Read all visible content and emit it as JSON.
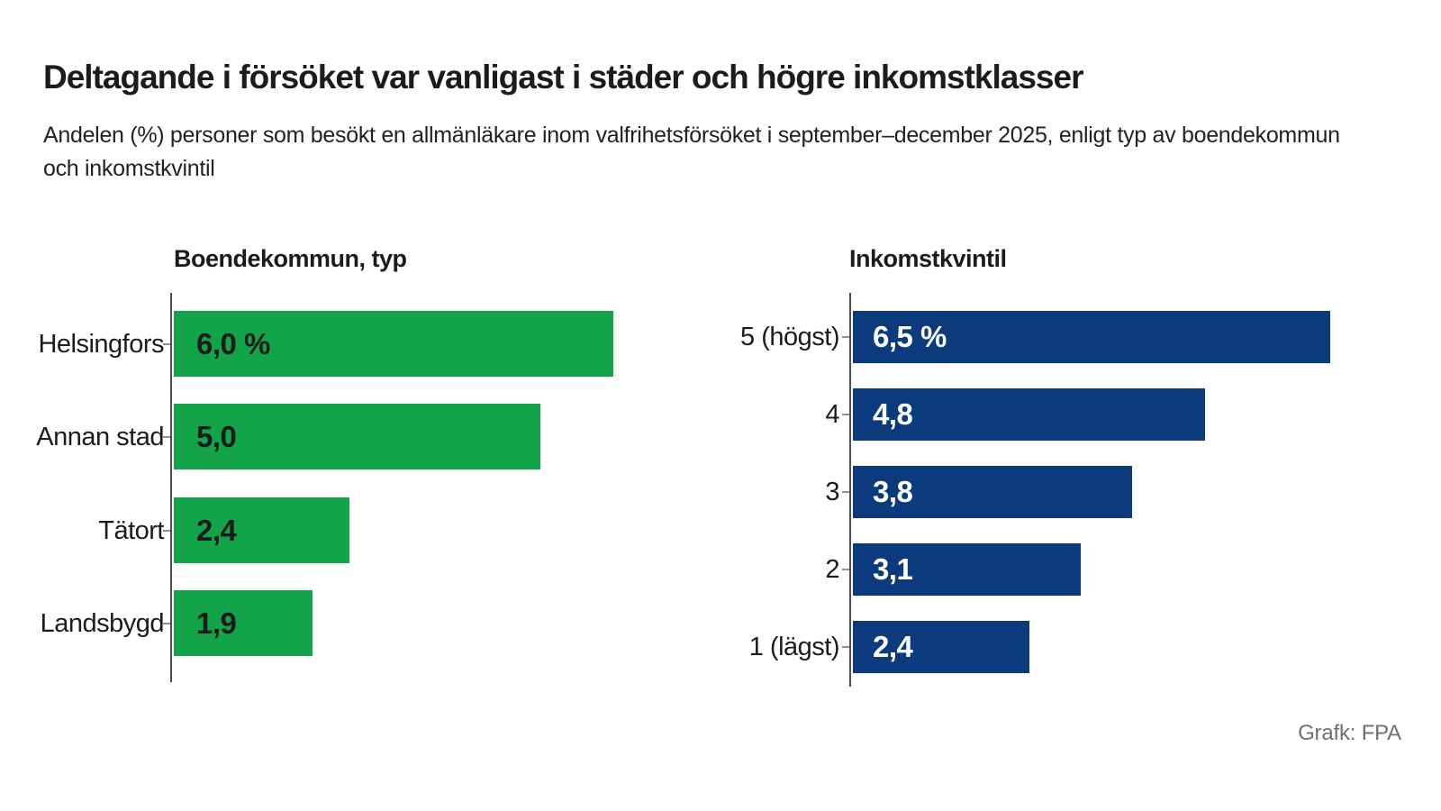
{
  "header": {
    "title": "Deltagande i försöket var vanligast i städer och högre inkomstklasser",
    "subtitle_lines": [
      "Andelen (%) personer som besökt en allmänläkare inom valfrihetsförsöket i september–december 2025, enligt typ av boendekommun",
      "och inkomstkvintil"
    ]
  },
  "footer": {
    "credit": "Grafk: FPA"
  },
  "colors": {
    "green_bar": "#13a449",
    "navy_bar": "#0c3b7d",
    "text": "#1c1c1c",
    "axis_line": "#4d4d4d",
    "tick_mark": "#8f8f8f",
    "credit_gray": "#707070",
    "background": "#ffffff"
  },
  "chart_data": [
    {
      "type": "bar",
      "orientation": "horizontal",
      "title": "Boendekommun, typ",
      "categories": [
        "Helsingfors",
        "Annan stad",
        "Tätort",
        "Landsbygd"
      ],
      "values": [
        6.0,
        5.0,
        2.4,
        1.9
      ],
      "value_labels": [
        "6,0 %",
        "5,0",
        "2,4",
        "1,9"
      ],
      "unit": "%",
      "bar_color": "#13a449",
      "value_label_color": "#1c1c1c",
      "value_labels_position": "inside-start",
      "xlim": [
        0,
        6.5
      ],
      "grid": false,
      "legend": "none"
    },
    {
      "type": "bar",
      "orientation": "horizontal",
      "title": "Inkomstkvintil",
      "categories": [
        "5 (högst)",
        "4",
        "3",
        "2",
        "1 (lägst)"
      ],
      "values": [
        6.5,
        4.8,
        3.8,
        3.1,
        2.4
      ],
      "value_labels": [
        "6,5 %",
        "4,8",
        "3,8",
        "3,1",
        "2,4"
      ],
      "unit": "%",
      "bar_color": "#0c3b7d",
      "value_label_color": "#ffffff",
      "value_labels_position": "inside-start",
      "xlim": [
        0,
        6.5
      ],
      "grid": false,
      "legend": "none"
    }
  ]
}
